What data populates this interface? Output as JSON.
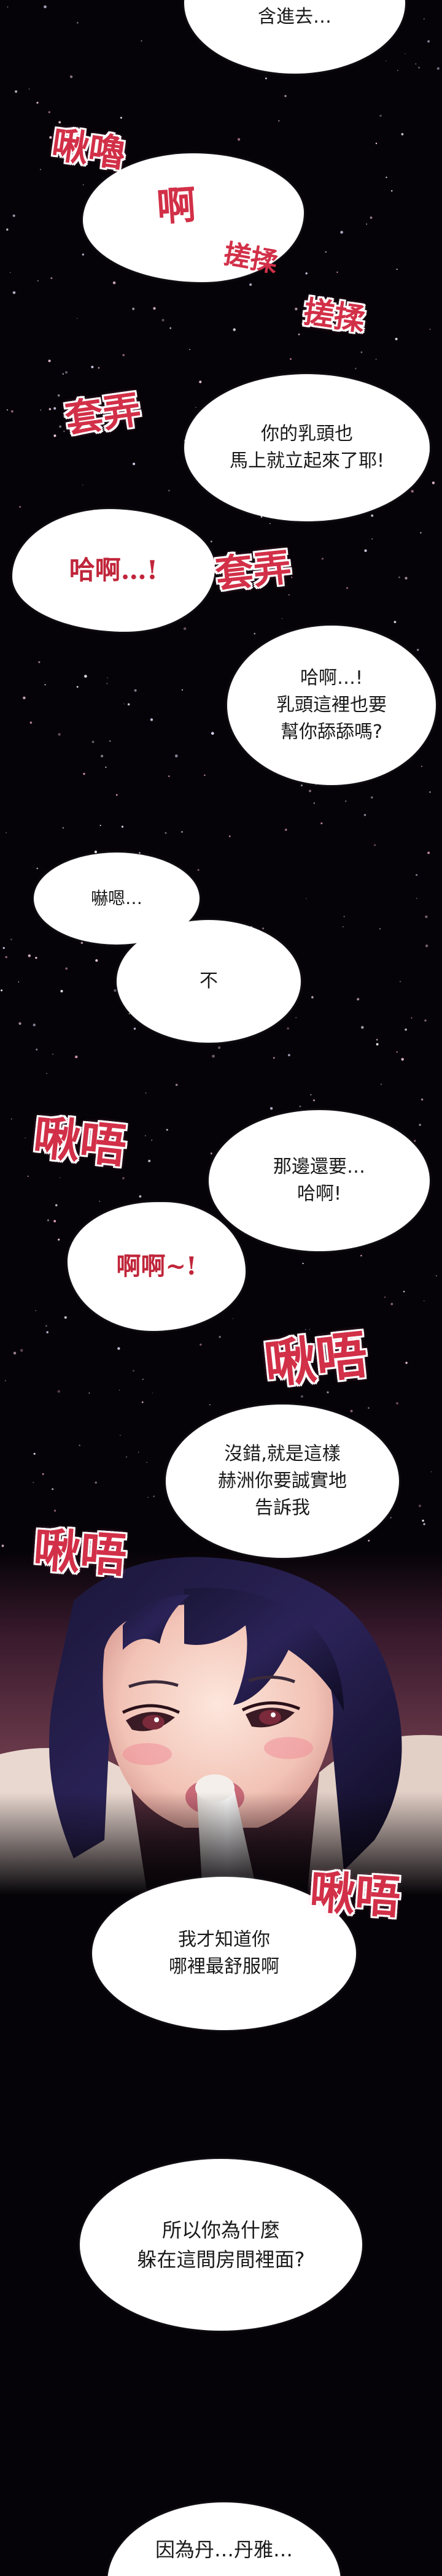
{
  "bubbles": {
    "b1": "含進去…",
    "b2": "你的乳頭也\n馬上就立起來了耶!",
    "b3": "哈啊…!",
    "b4": "哈啊…!\n乳頭這裡也要\n幫你舔舔嗎?",
    "b5": "嚇嗯…",
    "b6": "不",
    "b7": "那邊還要…\n哈啊!",
    "b8": "啊啊~!",
    "b9": "沒錯,就是這樣\n赫洲你要誠實地\n告訴我",
    "b10": "我才知道你\n哪裡最舒服啊",
    "b11": "所以你為什麼\n躲在這間房間裡面?",
    "b12": "因為丹…丹雅…"
  },
  "sfx": {
    "s1": "啾嚕",
    "s2": "啊",
    "s3": "搓揉",
    "s4": "搓揉",
    "s5": "套弄",
    "s6": "套弄",
    "s7": "啾唔",
    "s8": "啾唔",
    "s9": "啾唔",
    "s10": "啾唔"
  },
  "colors": {
    "background": "#050307",
    "sfx_red": "#d23048",
    "bubble": "#ffffff"
  }
}
